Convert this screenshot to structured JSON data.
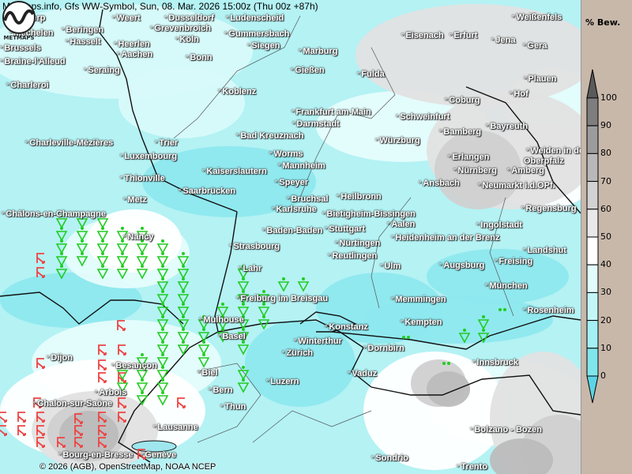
{
  "header": {
    "title": "MetMaps.info, Gfs WW-Symbol, Sun, 08. Mar. 2026 15:00z (Thu 00z +87h)"
  },
  "footer": {
    "copyright": "© 2026 (AGB), OpenStreetMap, NOAA NCEP",
    "logo_text": "METMAPS"
  },
  "legend": {
    "title": "% Bew.",
    "ticks": [
      "100",
      "90",
      "80",
      "70",
      "60",
      "50",
      "40",
      "30",
      "20",
      "10",
      "0"
    ],
    "colors": [
      "#5a5a5a",
      "#7e7e7e",
      "#9c9c9c",
      "#b8b8b8",
      "#d2d2d2",
      "#e8e8e8",
      "#ffffff",
      "#e2fcfc",
      "#c4f6f8",
      "#a4f0f4",
      "#80e6ec",
      "#5cd4e6"
    ]
  },
  "symbols": {
    "rain_shower_color": "#22cc22",
    "thunderstorm_color": "#ee4444"
  },
  "cities": [
    "Antwerp",
    "Weert",
    "Dusseldorf",
    "Ludenscheid",
    "Weißenfels",
    "Mechelen",
    "Beringen",
    "Grevenbroich",
    "Gummersbach",
    "Eisenach",
    "Erfurt",
    "Jena",
    "Gera",
    "Hasselt",
    "Heerlen",
    "Köln",
    "Siegen",
    "Brussels",
    "Aachen",
    "Marburg",
    "Bonn",
    "Braine-l'Alleud",
    "Seraing",
    "Gießen",
    "Fulda",
    "Plauen",
    "Charleroi",
    "Koblenz",
    "Hof",
    "Coburg",
    "Frankfurt am Main",
    "Schweinfurt",
    "Bayreuth",
    "Bamberg",
    "Bad Kreuznach",
    "Darmstadt",
    "Würzburg",
    "Charleville-Mézières",
    "Trier",
    "Weiden in der",
    "Oberpfalz",
    "Worms",
    "Luxembourg",
    "Erlangen",
    "Mannheim",
    "Kaiserslautern",
    "Nürnberg",
    "Amberg",
    "Thionville",
    "Speyer",
    "Ansbach",
    "Neumarkt i.d.OPf.",
    "Saarbrücken",
    "Metz",
    "Bruchsal",
    "Heilbronn",
    "Karlsruhe",
    "Regensburg",
    "Châlons-en-Champagne",
    "Bietigheim-Bissingen",
    "Aalen",
    "Stuttgart",
    "Baden-Baden",
    "Ingolstadt",
    "Nancy",
    "Heidenheim an der Brenz",
    "Strasbourg",
    "Nürtingen",
    "Landshut",
    "Reutlingen",
    "Ulm",
    "Freising",
    "Augsburg",
    "Lahr",
    "München",
    "Freiburg im Breisgau",
    "Memmingen",
    "Rosenheim",
    "Mulhouse",
    "Kempten",
    "Konstanz",
    "Basel",
    "Winterthur",
    "Dornbirn",
    "Zürich",
    "Dijon",
    "Besançon",
    "Innsbruck",
    "Biel",
    "Vaduz",
    "Luzern",
    "Arbois",
    "Bern",
    "Chalon-sur-Saône",
    "Thun",
    "Lausanne",
    "Bolzano - Bozen",
    "Genève",
    "Bourg-en-Bresse",
    "Sondrio",
    "Trento"
  ]
}
